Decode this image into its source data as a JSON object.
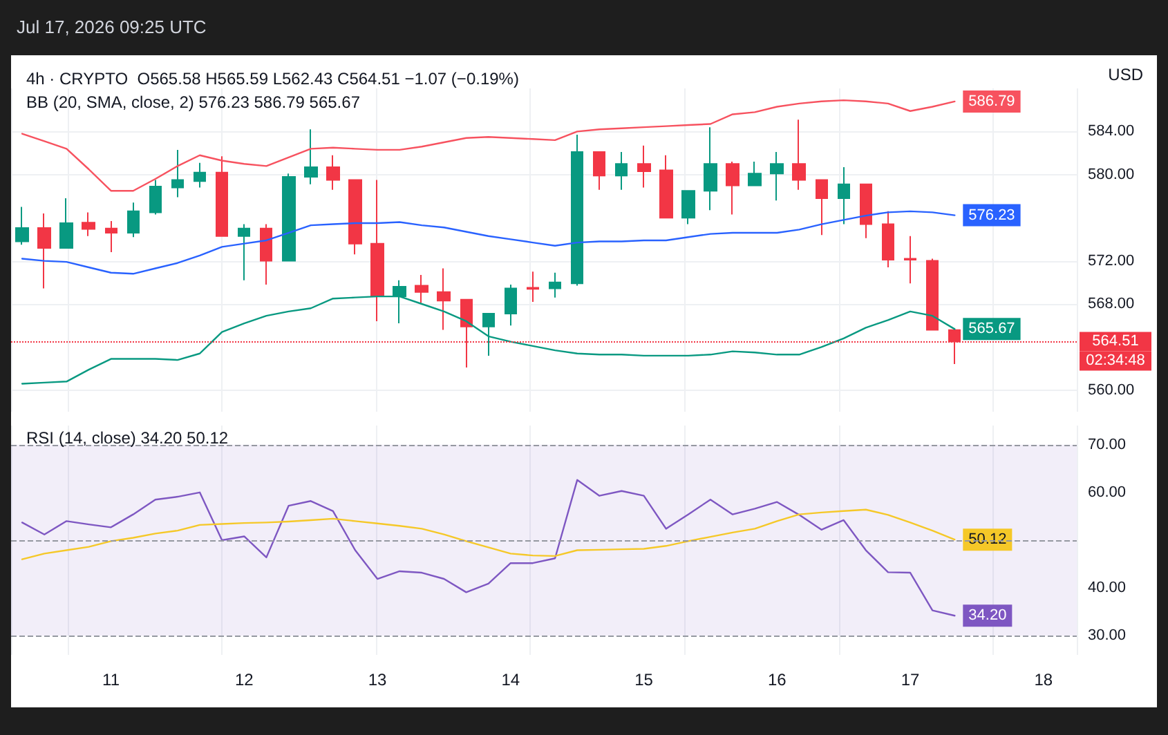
{
  "chart_data": [
    {
      "type": "candlestick",
      "title": "4h · CRYPTO  O565.58 H565.59 L562.43 C564.51 −1.07 (−0.19%)",
      "subtitle": "BB (20, SMA, close, 2) 576.23 586.79 565.67",
      "x": [
        "2026-07-10T08:00",
        "2026-07-10T12:00",
        "2026-07-10T16:00",
        "2026-07-10T20:00",
        "2026-07-11T00:00",
        "2026-07-11T04:00",
        "2026-07-11T08:00",
        "2026-07-11T12:00",
        "2026-07-11T16:00",
        "2026-07-11T20:00",
        "2026-07-12T00:00",
        "2026-07-12T04:00",
        "2026-07-12T08:00",
        "2026-07-12T12:00",
        "2026-07-12T16:00",
        "2026-07-12T20:00",
        "2026-07-13T00:00",
        "2026-07-13T04:00",
        "2026-07-13T08:00",
        "2026-07-13T12:00",
        "2026-07-13T16:00",
        "2026-07-13T20:00",
        "2026-07-14T00:00",
        "2026-07-14T04:00",
        "2026-07-14T08:00",
        "2026-07-14T12:00",
        "2026-07-14T16:00",
        "2026-07-14T20:00",
        "2026-07-15T00:00",
        "2026-07-15T04:00",
        "2026-07-15T08:00",
        "2026-07-15T12:00",
        "2026-07-15T16:00",
        "2026-07-15T20:00",
        "2026-07-16T00:00",
        "2026-07-16T04:00",
        "2026-07-16T08:00",
        "2026-07-16T12:00",
        "2026-07-16T16:00",
        "2026-07-16T20:00",
        "2026-07-17T00:00",
        "2026-07-17T04:00",
        "2026-07-17T08:00"
      ],
      "ohlc": [
        [
          573.8,
          577.0,
          573.5,
          575.05
        ],
        [
          575.05,
          576.4,
          569.45,
          573.2
        ],
        [
          573.2,
          577.8,
          573.2,
          575.5
        ],
        [
          575.55,
          576.5,
          574.3,
          574.95
        ],
        [
          575.0,
          575.7,
          572.8,
          574.6
        ],
        [
          574.6,
          577.4,
          574.2,
          576.6
        ],
        [
          576.5,
          579.5,
          576.3,
          578.9
        ],
        [
          578.8,
          582.3,
          577.9,
          579.5
        ],
        [
          579.4,
          581.1,
          578.8,
          580.2
        ],
        [
          580.2,
          581.7,
          574.3,
          574.3
        ],
        [
          574.3,
          575.4,
          570.2,
          575.0
        ],
        [
          575.0,
          575.4,
          569.8,
          572.0
        ],
        [
          572.0,
          580.1,
          572.0,
          579.8
        ],
        [
          579.8,
          584.2,
          579.1,
          580.7
        ],
        [
          580.7,
          581.8,
          578.6,
          579.5
        ],
        [
          579.5,
          579.5,
          572.6,
          573.6
        ],
        [
          573.6,
          579.5,
          566.4,
          568.7
        ],
        [
          568.7,
          570.2,
          566.2,
          569.6
        ],
        [
          569.7,
          570.7,
          568.1,
          569.1
        ],
        [
          569.1,
          571.3,
          565.6,
          568.3
        ],
        [
          568.4,
          568.4,
          562.1,
          565.9
        ],
        [
          565.9,
          567.1,
          563.2,
          567.1
        ],
        [
          567.1,
          569.8,
          566.0,
          569.45
        ],
        [
          569.5,
          571.0,
          568.2,
          569.4
        ],
        [
          569.45,
          570.9,
          568.6,
          570.0
        ],
        [
          569.9,
          583.7,
          569.7,
          582.1
        ],
        [
          582.1,
          582.1,
          578.6,
          579.9
        ],
        [
          579.9,
          582.1,
          578.6,
          581.0
        ],
        [
          581.0,
          582.7,
          578.8,
          580.3
        ],
        [
          580.4,
          581.8,
          576.0,
          576.0
        ],
        [
          576.0,
          578.5,
          575.4,
          578.5
        ],
        [
          578.5,
          584.4,
          576.7,
          581.0
        ],
        [
          581.0,
          581.2,
          576.3,
          579.0
        ],
        [
          579.0,
          581.2,
          579.0,
          580.1
        ],
        [
          580.1,
          582.1,
          577.6,
          581.0
        ],
        [
          581.0,
          585.1,
          578.6,
          579.5
        ],
        [
          579.5,
          579.5,
          574.4,
          577.8
        ],
        [
          577.8,
          580.7,
          575.4,
          579.1
        ],
        [
          579.1,
          579.1,
          574.1,
          575.4
        ],
        [
          575.4,
          576.6,
          571.4,
          572.1
        ],
        [
          572.2,
          574.3,
          569.9,
          572.1
        ],
        [
          572.0,
          572.2,
          565.6,
          565.6
        ],
        [
          565.58,
          565.59,
          562.43,
          564.51
        ]
      ],
      "colors": [
        "#089981",
        "#f23645",
        "#089981",
        "#f23645",
        "#f23645",
        "#089981",
        "#089981",
        "#089981",
        "#089981",
        "#f23645",
        "#089981",
        "#f23645",
        "#089981",
        "#089981",
        "#f23645",
        "#f23645",
        "#f23645",
        "#089981",
        "#f23645",
        "#f23645",
        "#f23645",
        "#089981",
        "#089981",
        "#f23645",
        "#089981",
        "#089981",
        "#f23645",
        "#089981",
        "#f23645",
        "#f23645",
        "#089981",
        "#089981",
        "#f23645",
        "#089981",
        "#089981",
        "#f23645",
        "#f23645",
        "#089981",
        "#f23645",
        "#f23645",
        "#f23645",
        "#f23645",
        "#f23645"
      ],
      "series": [
        {
          "type": "line",
          "color": "#f7525f",
          "value_labels": [
            null,
            null,
            null,
            null,
            null,
            null,
            null,
            null,
            null,
            null,
            null,
            null,
            null,
            null,
            null,
            null,
            null,
            null,
            null,
            null,
            null,
            null,
            null,
            null,
            null,
            null,
            null,
            null,
            null,
            null,
            null,
            null,
            null,
            null,
            null,
            null,
            null,
            null,
            null,
            null,
            null,
            null,
            "586.79"
          ],
          "values": [
            583.8,
            583.1,
            582.4,
            580.5,
            578.5,
            578.5,
            579.6,
            580.8,
            581.8,
            581.3,
            581.0,
            580.8,
            581.6,
            582.4,
            582.5,
            582.4,
            582.3,
            582.3,
            582.6,
            583.0,
            583.4,
            583.5,
            583.4,
            583.3,
            583.2,
            584.0,
            584.2,
            584.3,
            584.4,
            584.5,
            584.6,
            584.7,
            585.6,
            585.8,
            586.3,
            586.6,
            586.8,
            586.9,
            586.8,
            586.6,
            585.9,
            586.3,
            586.79
          ]
        },
        {
          "type": "line",
          "color": "#2962ff",
          "value_labels": [
            null,
            null,
            null,
            null,
            null,
            null,
            null,
            null,
            null,
            null,
            null,
            null,
            null,
            null,
            null,
            null,
            null,
            null,
            null,
            null,
            null,
            null,
            null,
            null,
            null,
            null,
            null,
            null,
            null,
            null,
            null,
            null,
            null,
            null,
            null,
            null,
            null,
            null,
            null,
            null,
            null,
            null,
            "576.23"
          ],
          "values": [
            572.2,
            572.0,
            571.9,
            571.4,
            570.9,
            570.8,
            571.3,
            571.8,
            572.5,
            573.3,
            573.6,
            573.9,
            574.6,
            575.3,
            575.4,
            575.5,
            575.5,
            575.6,
            575.3,
            575.1,
            574.7,
            574.3,
            574.0,
            573.7,
            573.4,
            573.7,
            573.8,
            573.8,
            573.9,
            573.9,
            574.2,
            574.5,
            574.6,
            574.6,
            574.6,
            574.9,
            575.4,
            575.8,
            576.2,
            576.5,
            576.6,
            576.5,
            576.23
          ]
        },
        {
          "type": "line",
          "color": "#089981",
          "value_labels": [
            null,
            null,
            null,
            null,
            null,
            null,
            null,
            null,
            null,
            null,
            null,
            null,
            null,
            null,
            null,
            null,
            null,
            null,
            null,
            null,
            null,
            null,
            null,
            null,
            null,
            null,
            null,
            null,
            null,
            null,
            null,
            null,
            null,
            null,
            null,
            null,
            null,
            null,
            null,
            null,
            null,
            null,
            "565.67"
          ],
          "values": [
            560.6,
            560.7,
            560.8,
            561.9,
            562.9,
            562.9,
            562.9,
            562.8,
            563.4,
            565.4,
            566.2,
            566.9,
            567.3,
            567.6,
            568.5,
            568.6,
            568.7,
            568.7,
            568.0,
            567.3,
            566.4,
            565.0,
            564.5,
            564.1,
            563.7,
            563.4,
            563.3,
            563.3,
            563.2,
            563.2,
            563.2,
            563.3,
            563.6,
            563.5,
            563.3,
            563.3,
            564.0,
            564.8,
            565.8,
            566.5,
            567.3,
            566.9,
            565.67
          ]
        }
      ],
      "xlim": [
        "2026-07-10T06:00",
        "2026-07-18T06:00"
      ],
      "xticks": [
        {
          "value": "2026-07-11T00:00",
          "label": null
        },
        {
          "value": "2026-07-12T00:00",
          "label": null
        },
        {
          "value": "2026-07-13T00:00",
          "label": null
        },
        {
          "value": "2026-07-14T00:00",
          "label": null
        },
        {
          "value": "2026-07-15T00:00",
          "label": null
        },
        {
          "value": "2026-07-16T00:00",
          "label": null
        },
        {
          "value": "2026-07-17T00:00",
          "label": null
        },
        {
          "value": "2026-07-18T00:00",
          "label": null
        }
      ],
      "ylim": [
        558,
        588
      ],
      "yticks": [
        {
          "value": 560,
          "label": "560.00"
        },
        {
          "value": 568,
          "label": "568.00"
        },
        {
          "value": 572,
          "label": "572.00"
        },
        {
          "value": 580,
          "label": "580.00"
        },
        {
          "value": 584,
          "label": "584.00"
        }
      ],
      "tick_labels": "y",
      "grid": true,
      "marker": "none",
      "line_style": "solid",
      "ref_lines": [
        {
          "axis": "y",
          "value": 564.51,
          "color": "#f23645",
          "line_style": "dotted"
        }
      ],
      "annotations": [
        "Jul 17, 2026 09:25 UTC",
        "USD",
        {
          "text": "564.51",
          "x": "2026-07-18T06:00",
          "y": 564.51
        },
        {
          "text": "02:34:48",
          "x": "2026-07-18T06:00",
          "y": 564.51
        }
      ]
    },
    {
      "type": "line",
      "title": "RSI (14, close) 34.20 50.12",
      "x": [
        "2026-07-10T08:00",
        "2026-07-10T12:00",
        "2026-07-10T16:00",
        "2026-07-10T20:00",
        "2026-07-11T00:00",
        "2026-07-11T04:00",
        "2026-07-11T08:00",
        "2026-07-11T12:00",
        "2026-07-11T16:00",
        "2026-07-11T20:00",
        "2026-07-12T00:00",
        "2026-07-12T04:00",
        "2026-07-12T08:00",
        "2026-07-12T12:00",
        "2026-07-12T16:00",
        "2026-07-12T20:00",
        "2026-07-13T00:00",
        "2026-07-13T04:00",
        "2026-07-13T08:00",
        "2026-07-13T12:00",
        "2026-07-13T16:00",
        "2026-07-13T20:00",
        "2026-07-14T00:00",
        "2026-07-14T04:00",
        "2026-07-14T08:00",
        "2026-07-14T12:00",
        "2026-07-14T16:00",
        "2026-07-14T20:00",
        "2026-07-15T00:00",
        "2026-07-15T04:00",
        "2026-07-15T08:00",
        "2026-07-15T12:00",
        "2026-07-15T16:00",
        "2026-07-15T20:00",
        "2026-07-16T00:00",
        "2026-07-16T04:00",
        "2026-07-16T08:00",
        "2026-07-16T12:00",
        "2026-07-16T16:00",
        "2026-07-16T20:00",
        "2026-07-17T00:00",
        "2026-07-17T04:00",
        "2026-07-17T08:00"
      ],
      "series": [
        {
          "color": "#7e57c2",
          "value_labels": [
            null,
            null,
            null,
            null,
            null,
            null,
            null,
            null,
            null,
            null,
            null,
            null,
            null,
            null,
            null,
            null,
            null,
            null,
            null,
            null,
            null,
            null,
            null,
            null,
            null,
            null,
            null,
            null,
            null,
            null,
            null,
            null,
            null,
            null,
            null,
            null,
            null,
            null,
            null,
            null,
            null,
            null,
            "34.20"
          ],
          "values": [
            53.7,
            51.2,
            54.0,
            53.3,
            52.7,
            55.4,
            58.5,
            59.1,
            60.0,
            50.0,
            50.8,
            46.4,
            57.2,
            58.2,
            56.1,
            47.9,
            41.9,
            43.5,
            43.2,
            41.9,
            39.1,
            40.9,
            45.2,
            45.2,
            46.2,
            62.6,
            59.3,
            60.3,
            59.3,
            52.4,
            55.4,
            58.5,
            55.4,
            56.6,
            58.0,
            55.3,
            52.2,
            54.2,
            47.9,
            43.3,
            43.2,
            35.3,
            34.2
          ]
        },
        {
          "color": "#f5c828",
          "value_labels": [
            null,
            null,
            null,
            null,
            null,
            null,
            null,
            null,
            null,
            null,
            null,
            null,
            null,
            null,
            null,
            null,
            null,
            null,
            null,
            null,
            null,
            null,
            null,
            null,
            null,
            null,
            null,
            null,
            null,
            null,
            null,
            null,
            null,
            null,
            null,
            null,
            null,
            null,
            null,
            null,
            null,
            null,
            "50.12"
          ],
          "values": [
            46.0,
            47.2,
            47.9,
            48.6,
            49.8,
            50.5,
            51.4,
            52.0,
            53.2,
            53.4,
            53.6,
            53.7,
            53.9,
            54.2,
            54.5,
            54.0,
            53.5,
            53.0,
            52.4,
            51.2,
            49.8,
            48.5,
            47.2,
            46.8,
            46.7,
            47.9,
            48.0,
            48.1,
            48.2,
            48.8,
            49.8,
            50.7,
            51.6,
            52.4,
            54.0,
            55.4,
            55.8,
            56.1,
            56.4,
            55.3,
            53.7,
            52.0,
            50.12
          ]
        }
      ],
      "xlim": [
        "2026-07-10T06:00",
        "2026-07-18T06:00"
      ],
      "xticks": [
        {
          "value": "2026-07-11T00:00",
          "label": "11"
        },
        {
          "value": "2026-07-12T00:00",
          "label": "12"
        },
        {
          "value": "2026-07-13T00:00",
          "label": "13"
        },
        {
          "value": "2026-07-14T00:00",
          "label": "14"
        },
        {
          "value": "2026-07-15T00:00",
          "label": "15"
        },
        {
          "value": "2026-07-16T00:00",
          "label": "16"
        },
        {
          "value": "2026-07-17T00:00",
          "label": "17"
        },
        {
          "value": "2026-07-18T00:00",
          "label": "18"
        }
      ],
      "ylim": [
        26,
        74
      ],
      "yticks": [
        {
          "value": 30,
          "label": "30.00"
        },
        {
          "value": 40,
          "label": "40.00"
        },
        {
          "value": 60,
          "label": "60.00"
        },
        {
          "value": 70,
          "label": "70.00"
        }
      ],
      "grid": "x",
      "marker": "none",
      "line_style": "solid",
      "ref_lines": [
        {
          "axis": "y",
          "value": 70,
          "color": "#9598a1",
          "line_style": "dashed"
        },
        {
          "axis": "y",
          "value": 50,
          "color": "#9598a1",
          "line_style": "dashed"
        },
        {
          "axis": "y",
          "value": 30,
          "color": "#9598a1",
          "line_style": "dashed"
        }
      ],
      "bands": [
        {
          "axis": "y",
          "from": 30,
          "to": 70,
          "color": "#7e57c2"
        }
      ]
    }
  ]
}
